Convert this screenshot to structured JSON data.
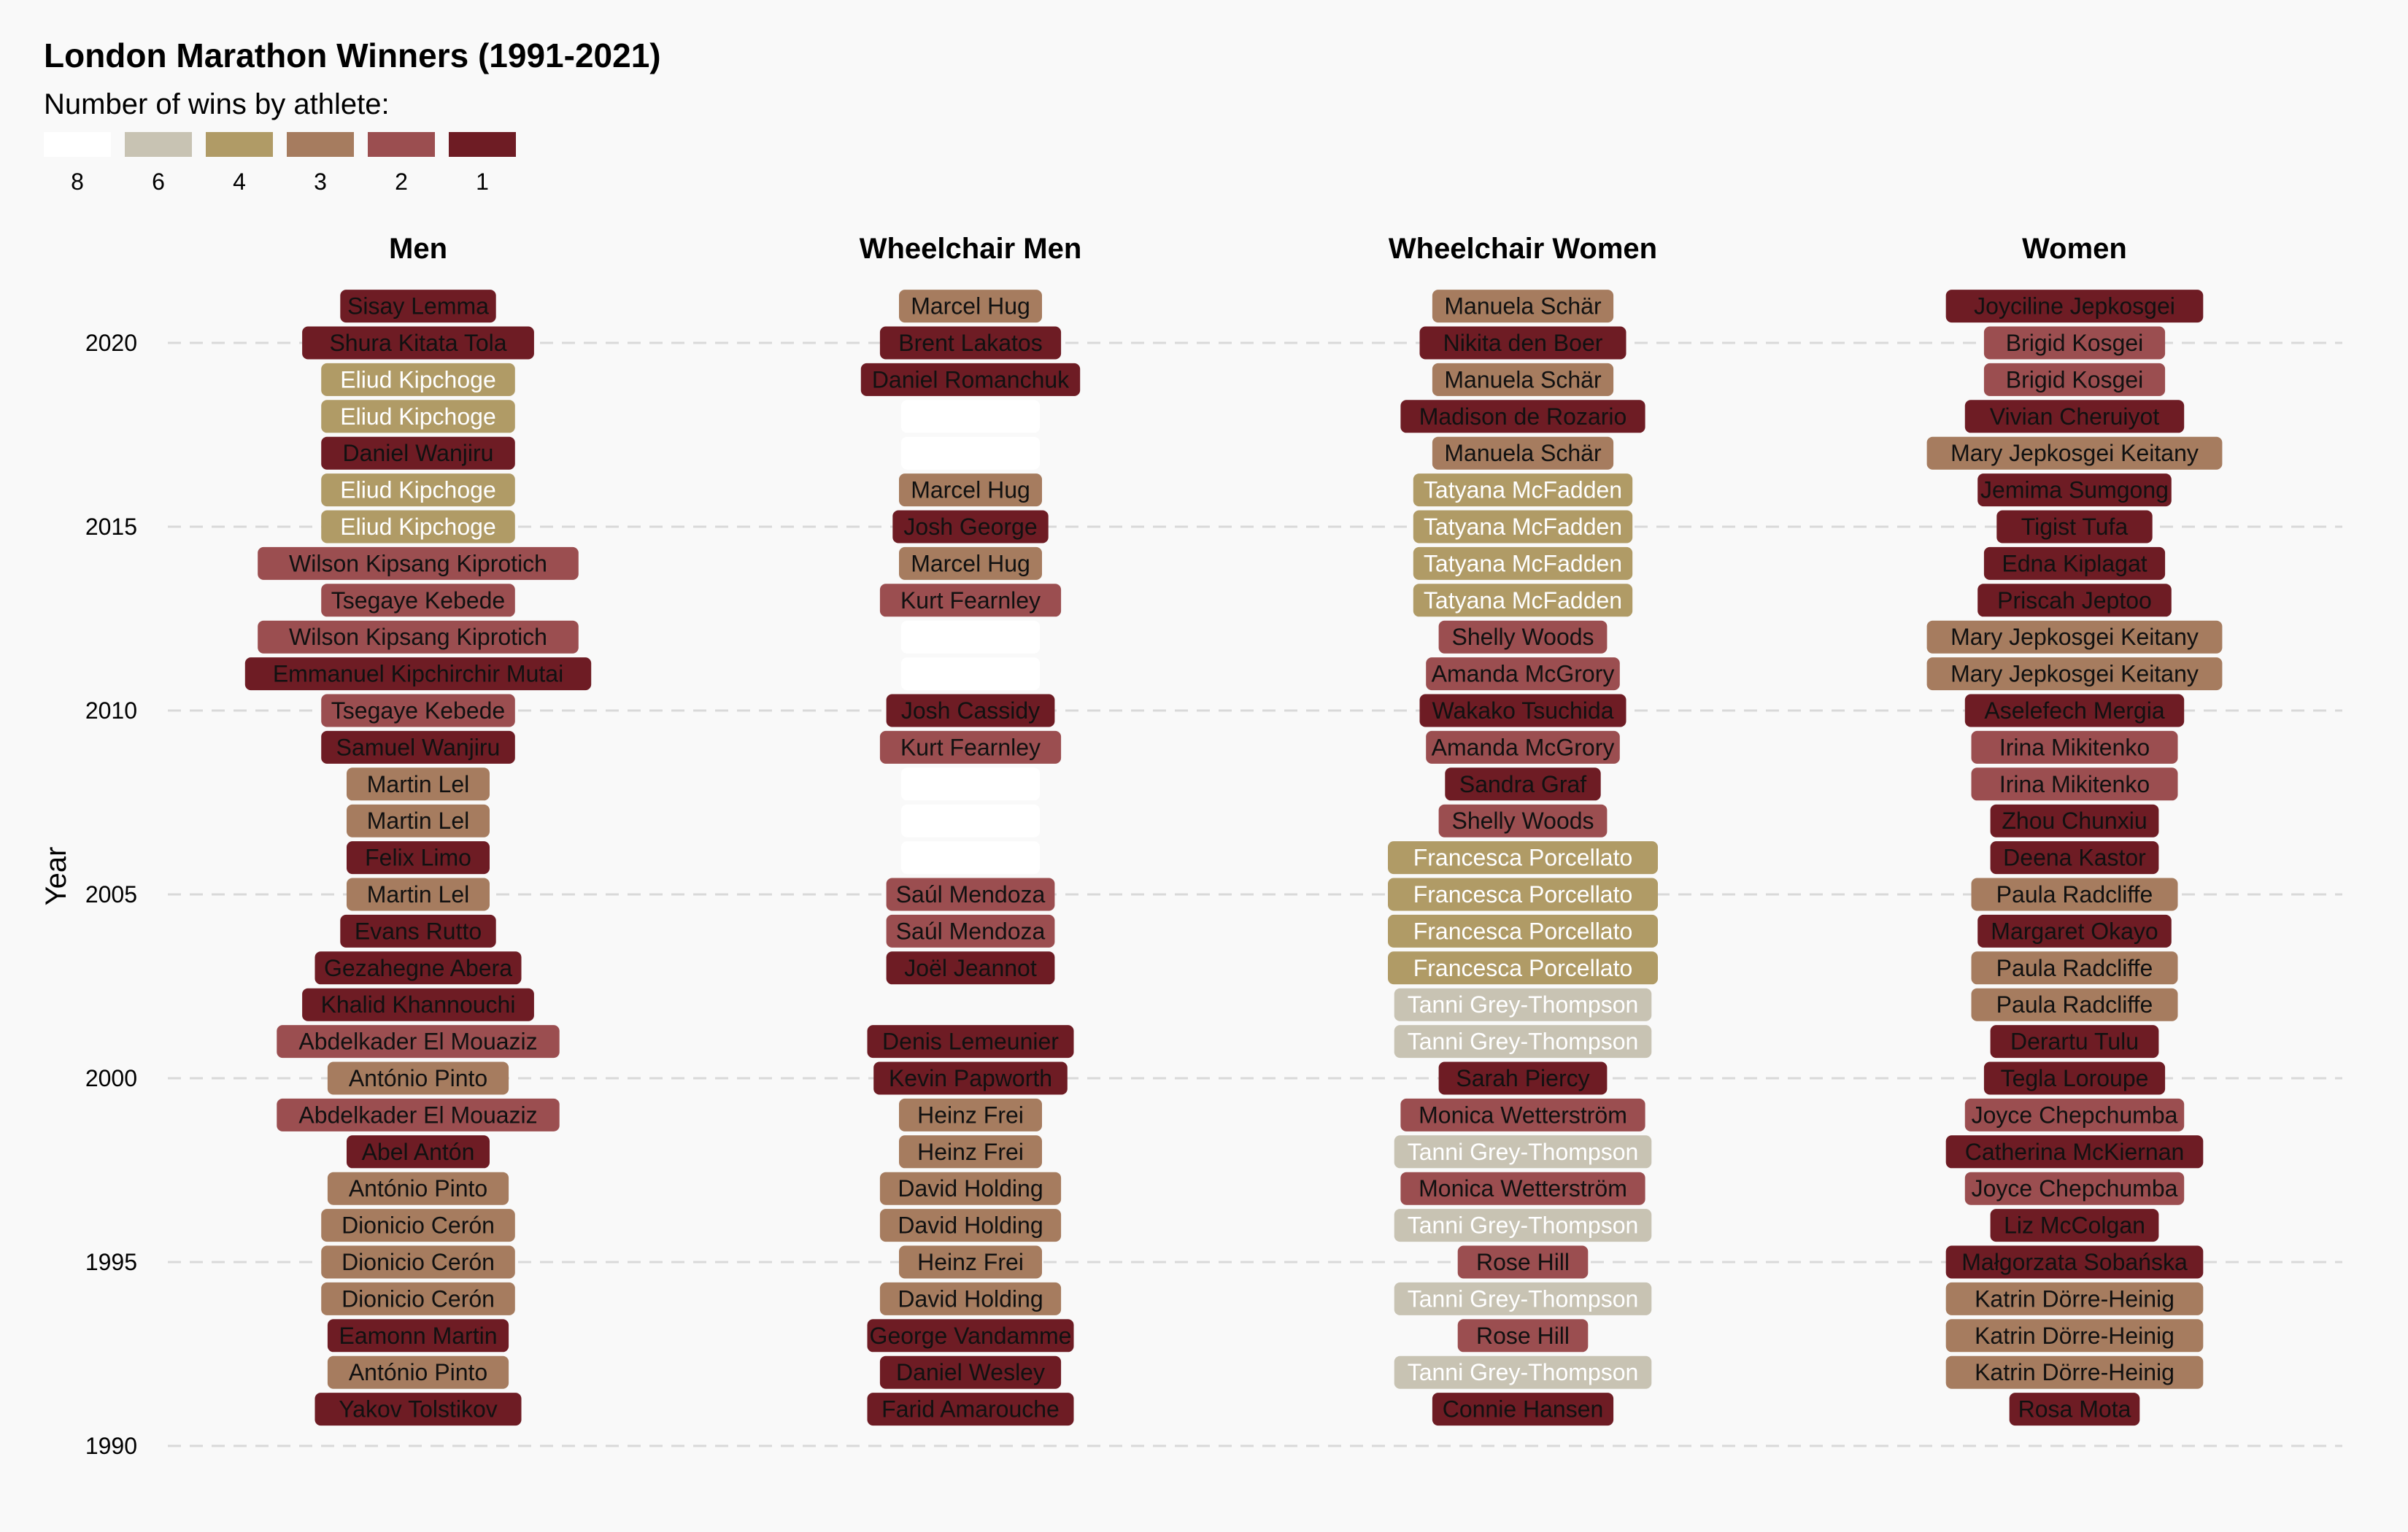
{
  "chart_data": {
    "type": "table",
    "title": "London Marathon Winners (1991-2021)",
    "legend": {
      "title": "Number of wins by athlete:",
      "items": [
        {
          "label": "8",
          "wins": 8,
          "color": "#ffffff"
        },
        {
          "label": "6",
          "wins": 6,
          "color": "#c8c3b3"
        },
        {
          "label": "4",
          "wins": 4,
          "color": "#b09b66"
        },
        {
          "label": "3",
          "wins": 3,
          "color": "#a67c5f"
        },
        {
          "label": "2",
          "wins": 2,
          "color": "#9b4e50"
        },
        {
          "label": "1",
          "wins": 1,
          "color": "#6e1c24"
        }
      ]
    },
    "ylabel": "Year",
    "ylim": [
      1990,
      2021.8
    ],
    "yticks": [
      1990,
      1995,
      2000,
      2005,
      2010,
      2015,
      2020
    ],
    "grid": true,
    "categories": [
      "Men",
      "Wheelchair Men",
      "Wheelchair Women",
      "Women"
    ],
    "series": [
      {
        "name": "Men",
        "points": [
          {
            "year": 2021,
            "winner": "Sisay Lemma",
            "wins": 1
          },
          {
            "year": 2020,
            "winner": "Shura Kitata Tola",
            "wins": 1
          },
          {
            "year": 2019,
            "winner": "Eliud Kipchoge",
            "wins": 4
          },
          {
            "year": 2018,
            "winner": "Eliud Kipchoge",
            "wins": 4
          },
          {
            "year": 2017,
            "winner": "Daniel Wanjiru",
            "wins": 1
          },
          {
            "year": 2016,
            "winner": "Eliud Kipchoge",
            "wins": 4
          },
          {
            "year": 2015,
            "winner": "Eliud Kipchoge",
            "wins": 4
          },
          {
            "year": 2014,
            "winner": "Wilson Kipsang Kiprotich",
            "wins": 2
          },
          {
            "year": 2013,
            "winner": "Tsegaye Kebede",
            "wins": 2
          },
          {
            "year": 2012,
            "winner": "Wilson Kipsang Kiprotich",
            "wins": 2
          },
          {
            "year": 2011,
            "winner": "Emmanuel Kipchirchir Mutai",
            "wins": 1
          },
          {
            "year": 2010,
            "winner": "Tsegaye Kebede",
            "wins": 2
          },
          {
            "year": 2009,
            "winner": "Samuel Wanjiru",
            "wins": 1
          },
          {
            "year": 2008,
            "winner": "Martin Lel",
            "wins": 3
          },
          {
            "year": 2007,
            "winner": "Martin Lel",
            "wins": 3
          },
          {
            "year": 2006,
            "winner": "Felix Limo",
            "wins": 1
          },
          {
            "year": 2005,
            "winner": "Martin Lel",
            "wins": 3
          },
          {
            "year": 2004,
            "winner": "Evans Rutto",
            "wins": 1
          },
          {
            "year": 2003,
            "winner": "Gezahegne Abera",
            "wins": 1
          },
          {
            "year": 2002,
            "winner": "Khalid Khannouchi",
            "wins": 1
          },
          {
            "year": 2001,
            "winner": "Abdelkader El Mouaziz",
            "wins": 2
          },
          {
            "year": 2000,
            "winner": "António Pinto",
            "wins": 3
          },
          {
            "year": 1999,
            "winner": "Abdelkader El Mouaziz",
            "wins": 2
          },
          {
            "year": 1998,
            "winner": "Abel Antón",
            "wins": 1
          },
          {
            "year": 1997,
            "winner": "António Pinto",
            "wins": 3
          },
          {
            "year": 1996,
            "winner": "Dionicio Cerón",
            "wins": 3
          },
          {
            "year": 1995,
            "winner": "Dionicio Cerón",
            "wins": 3
          },
          {
            "year": 1994,
            "winner": "Dionicio Cerón",
            "wins": 3
          },
          {
            "year": 1993,
            "winner": "Eamonn Martin",
            "wins": 1
          },
          {
            "year": 1992,
            "winner": "António Pinto",
            "wins": 3
          },
          {
            "year": 1991,
            "winner": "Yakov Tolstikov",
            "wins": 1
          }
        ]
      },
      {
        "name": "Wheelchair Men",
        "points": [
          {
            "year": 2021,
            "winner": "Marcel Hug",
            "wins": 3
          },
          {
            "year": 2020,
            "winner": "Brent Lakatos",
            "wins": 1
          },
          {
            "year": 2019,
            "winner": "Daniel Romanchuk",
            "wins": 1
          },
          {
            "year": 2018,
            "winner": "",
            "wins": 8
          },
          {
            "year": 2017,
            "winner": "",
            "wins": 8
          },
          {
            "year": 2016,
            "winner": "Marcel Hug",
            "wins": 3
          },
          {
            "year": 2015,
            "winner": "Josh George",
            "wins": 1
          },
          {
            "year": 2014,
            "winner": "Marcel Hug",
            "wins": 3
          },
          {
            "year": 2013,
            "winner": "Kurt Fearnley",
            "wins": 2
          },
          {
            "year": 2012,
            "winner": "",
            "wins": 8
          },
          {
            "year": 2011,
            "winner": "",
            "wins": 8
          },
          {
            "year": 2010,
            "winner": "Josh Cassidy",
            "wins": 1
          },
          {
            "year": 2009,
            "winner": "Kurt Fearnley",
            "wins": 2
          },
          {
            "year": 2008,
            "winner": "",
            "wins": 8
          },
          {
            "year": 2007,
            "winner": "",
            "wins": 8
          },
          {
            "year": 2006,
            "winner": "",
            "wins": 8
          },
          {
            "year": 2005,
            "winner": "Saúl Mendoza",
            "wins": 2
          },
          {
            "year": 2004,
            "winner": "Saúl Mendoza",
            "wins": 2
          },
          {
            "year": 2003,
            "winner": "Joël Jeannot",
            "wins": 1
          },
          {
            "year": 2001,
            "winner": "Denis Lemeunier",
            "wins": 1
          },
          {
            "year": 2000,
            "winner": "Kevin Papworth",
            "wins": 1
          },
          {
            "year": 1999,
            "winner": "Heinz Frei",
            "wins": 3
          },
          {
            "year": 1998,
            "winner": "Heinz Frei",
            "wins": 3
          },
          {
            "year": 1997,
            "winner": "David Holding",
            "wins": 3
          },
          {
            "year": 1996,
            "winner": "David Holding",
            "wins": 3
          },
          {
            "year": 1995,
            "winner": "Heinz Frei",
            "wins": 3
          },
          {
            "year": 1994,
            "winner": "David Holding",
            "wins": 3
          },
          {
            "year": 1993,
            "winner": "George Vandamme",
            "wins": 1
          },
          {
            "year": 1992,
            "winner": "Daniel Wesley",
            "wins": 1
          },
          {
            "year": 1991,
            "winner": "Farid Amarouche",
            "wins": 1
          }
        ]
      },
      {
        "name": "Wheelchair Women",
        "points": [
          {
            "year": 2021,
            "winner": "Manuela Schär",
            "wins": 3
          },
          {
            "year": 2020,
            "winner": "Nikita den Boer",
            "wins": 1
          },
          {
            "year": 2019,
            "winner": "Manuela Schär",
            "wins": 3
          },
          {
            "year": 2018,
            "winner": "Madison de Rozario",
            "wins": 1
          },
          {
            "year": 2017,
            "winner": "Manuela Schär",
            "wins": 3
          },
          {
            "year": 2016,
            "winner": "Tatyana McFadden",
            "wins": 4
          },
          {
            "year": 2015,
            "winner": "Tatyana McFadden",
            "wins": 4
          },
          {
            "year": 2014,
            "winner": "Tatyana McFadden",
            "wins": 4
          },
          {
            "year": 2013,
            "winner": "Tatyana McFadden",
            "wins": 4
          },
          {
            "year": 2012,
            "winner": "Shelly Woods",
            "wins": 2
          },
          {
            "year": 2011,
            "winner": "Amanda McGrory",
            "wins": 2
          },
          {
            "year": 2010,
            "winner": "Wakako Tsuchida",
            "wins": 1
          },
          {
            "year": 2009,
            "winner": "Amanda McGrory",
            "wins": 2
          },
          {
            "year": 2008,
            "winner": "Sandra Graf",
            "wins": 1
          },
          {
            "year": 2007,
            "winner": "Shelly Woods",
            "wins": 2
          },
          {
            "year": 2006,
            "winner": "Francesca Porcellato",
            "wins": 4
          },
          {
            "year": 2005,
            "winner": "Francesca Porcellato",
            "wins": 4
          },
          {
            "year": 2004,
            "winner": "Francesca Porcellato",
            "wins": 4
          },
          {
            "year": 2003,
            "winner": "Francesca Porcellato",
            "wins": 4
          },
          {
            "year": 2002,
            "winner": "Tanni Grey-Thompson",
            "wins": 6
          },
          {
            "year": 2001,
            "winner": "Tanni Grey-Thompson",
            "wins": 6
          },
          {
            "year": 2000,
            "winner": "Sarah Piercy",
            "wins": 1
          },
          {
            "year": 1999,
            "winner": "Monica Wetterström",
            "wins": 2
          },
          {
            "year": 1998,
            "winner": "Tanni Grey-Thompson",
            "wins": 6
          },
          {
            "year": 1997,
            "winner": "Monica Wetterström",
            "wins": 2
          },
          {
            "year": 1996,
            "winner": "Tanni Grey-Thompson",
            "wins": 6
          },
          {
            "year": 1995,
            "winner": "Rose Hill",
            "wins": 2
          },
          {
            "year": 1994,
            "winner": "Tanni Grey-Thompson",
            "wins": 6
          },
          {
            "year": 1993,
            "winner": "Rose Hill",
            "wins": 2
          },
          {
            "year": 1992,
            "winner": "Tanni Grey-Thompson",
            "wins": 6
          },
          {
            "year": 1991,
            "winner": "Connie Hansen",
            "wins": 1
          }
        ]
      },
      {
        "name": "Women",
        "points": [
          {
            "year": 2021,
            "winner": "Joyciline Jepkosgei",
            "wins": 1
          },
          {
            "year": 2020,
            "winner": "Brigid Kosgei",
            "wins": 2
          },
          {
            "year": 2019,
            "winner": "Brigid Kosgei",
            "wins": 2
          },
          {
            "year": 2018,
            "winner": "Vivian Cheruiyot",
            "wins": 1
          },
          {
            "year": 2017,
            "winner": "Mary Jepkosgei Keitany",
            "wins": 3
          },
          {
            "year": 2016,
            "winner": "Jemima Sumgong",
            "wins": 1
          },
          {
            "year": 2015,
            "winner": "Tigist Tufa",
            "wins": 1
          },
          {
            "year": 2014,
            "winner": "Edna Kiplagat",
            "wins": 1
          },
          {
            "year": 2013,
            "winner": "Priscah Jeptoo",
            "wins": 1
          },
          {
            "year": 2012,
            "winner": "Mary Jepkosgei Keitany",
            "wins": 3
          },
          {
            "year": 2011,
            "winner": "Mary Jepkosgei Keitany",
            "wins": 3
          },
          {
            "year": 2010,
            "winner": "Aselefech Mergia",
            "wins": 1
          },
          {
            "year": 2009,
            "winner": "Irina Mikitenko",
            "wins": 2
          },
          {
            "year": 2008,
            "winner": "Irina Mikitenko",
            "wins": 2
          },
          {
            "year": 2007,
            "winner": "Zhou Chunxiu",
            "wins": 1
          },
          {
            "year": 2006,
            "winner": "Deena Kastor",
            "wins": 1
          },
          {
            "year": 2005,
            "winner": "Paula Radcliffe",
            "wins": 3
          },
          {
            "year": 2004,
            "winner": "Margaret Okayo",
            "wins": 1
          },
          {
            "year": 2003,
            "winner": "Paula Radcliffe",
            "wins": 3
          },
          {
            "year": 2002,
            "winner": "Paula Radcliffe",
            "wins": 3
          },
          {
            "year": 2001,
            "winner": "Derartu Tulu",
            "wins": 1
          },
          {
            "year": 2000,
            "winner": "Tegla Loroupe",
            "wins": 1
          },
          {
            "year": 1999,
            "winner": "Joyce Chepchumba",
            "wins": 2
          },
          {
            "year": 1998,
            "winner": "Catherina McKiernan",
            "wins": 1
          },
          {
            "year": 1997,
            "winner": "Joyce Chepchumba",
            "wins": 2
          },
          {
            "year": 1996,
            "winner": "Liz McColgan",
            "wins": 1
          },
          {
            "year": 1995,
            "winner": "Małgorzata Sobańska",
            "wins": 1
          },
          {
            "year": 1994,
            "winner": "Katrin Dörre-Heinig",
            "wins": 3
          },
          {
            "year": 1993,
            "winner": "Katrin Dörre-Heinig",
            "wins": 3
          },
          {
            "year": 1992,
            "winner": "Katrin Dörre-Heinig",
            "wins": 3
          },
          {
            "year": 1991,
            "winner": "Rosa Mota",
            "wins": 1
          }
        ]
      }
    ]
  }
}
